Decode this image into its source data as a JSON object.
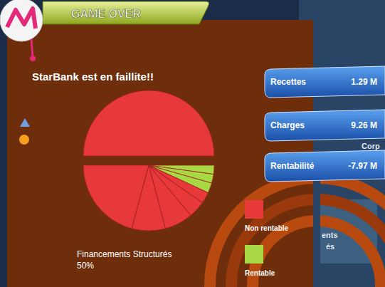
{
  "header": {
    "title": "GAME OVER"
  },
  "message": "StarBank est en faillite!!",
  "stats": [
    {
      "label": "Recettes",
      "value": "1.29 M"
    },
    {
      "label": "Charges",
      "value": "9.26 M"
    },
    {
      "label": "Rentabilité",
      "value": "-7.97 M"
    }
  ],
  "background_labels": [
    "Corp",
    "ents",
    "és"
  ],
  "chart_data": {
    "type": "pie",
    "categories": [
      "Financements Structurés",
      null,
      null,
      null,
      null,
      null,
      null,
      null,
      null
    ],
    "values": [
      50,
      2.2,
      2.2,
      2.5,
      2.8,
      4.2,
      7,
      8.3,
      20.8
    ],
    "value_labels": [
      "50%",
      null,
      null,
      null,
      null,
      null,
      null,
      null,
      null
    ],
    "colors": [
      "#e8393a",
      "#a8d844",
      "#a8d844",
      "#a8d844",
      "#e8393a",
      "#e8393a",
      "#e8393a",
      "#e8393a",
      "#e8393a"
    ],
    "legend": "bottom-right",
    "legend_items": [
      {
        "name": "Non rentable",
        "color": "#e8393a"
      },
      {
        "name": "Rentable",
        "color": "#a8d844"
      }
    ]
  }
}
